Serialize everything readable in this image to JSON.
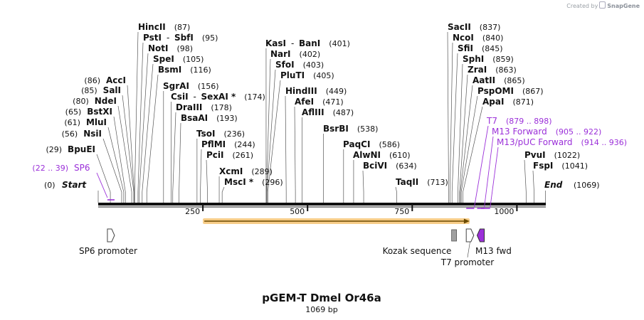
{
  "credit": {
    "prefix": "Created by",
    "brand": "SnapGene"
  },
  "map": {
    "name": "pGEM-T Dmel Or46a",
    "size_label": "1069 bp",
    "length": 1069,
    "ticks": [
      {
        "pos": 250,
        "label": "250"
      },
      {
        "pos": 500,
        "label": "500"
      },
      {
        "pos": 750,
        "label": "750"
      },
      {
        "pos": 1000,
        "label": "1000"
      }
    ],
    "start_label": {
      "pos": 0,
      "name": "Start",
      "num": "(0)"
    },
    "end_label": {
      "pos": 1069,
      "name": "End",
      "num": "(1069)"
    }
  },
  "sites": [
    {
      "name": "HincII",
      "num": "(87)",
      "pos": 87
    },
    {
      "name": "PstI",
      "extra": "SbfI",
      "num": "(95)",
      "pos": 95
    },
    {
      "name": "NotI",
      "num": "(98)",
      "pos": 98
    },
    {
      "name": "SpeI",
      "num": "(105)",
      "pos": 105
    },
    {
      "name": "BsmI",
      "num": "(116)",
      "pos": 116
    },
    {
      "name": "SgrAI",
      "num": "(156)",
      "pos": 156
    },
    {
      "name": "CsiI",
      "extra": "SexAI *",
      "num": "(174)",
      "pos": 174
    },
    {
      "name": "DraIII",
      "num": "(178)",
      "pos": 178
    },
    {
      "name": "BsaAI",
      "num": "(193)",
      "pos": 193
    },
    {
      "name": "TsoI",
      "num": "(236)",
      "pos": 236
    },
    {
      "name": "PflMI",
      "num": "(244)",
      "pos": 244
    },
    {
      "name": "PciI",
      "num": "(261)",
      "pos": 261
    },
    {
      "name": "XcmI",
      "num": "(289)",
      "pos": 289
    },
    {
      "name": "MscI *",
      "num": "(296)",
      "pos": 296
    },
    {
      "name": "AccI",
      "num": "(86)",
      "pos": 86
    },
    {
      "name": "SalI",
      "num": "(85)",
      "pos": 85
    },
    {
      "name": "NdeI",
      "num": "(80)",
      "pos": 80
    },
    {
      "name": "BstXI",
      "num": "(65)",
      "pos": 65
    },
    {
      "name": "MluI",
      "num": "(61)",
      "pos": 61
    },
    {
      "name": "NsiI",
      "num": "(56)",
      "pos": 56
    },
    {
      "name": "BpuEI",
      "num": "(29)",
      "pos": 29
    },
    {
      "name": "KasI",
      "extra": "BanI",
      "num": "(401)",
      "pos": 401
    },
    {
      "name": "NarI",
      "num": "(402)",
      "pos": 402
    },
    {
      "name": "SfoI",
      "num": "(403)",
      "pos": 403
    },
    {
      "name": "PluTI",
      "num": "(405)",
      "pos": 405
    },
    {
      "name": "HindIII",
      "num": "(449)",
      "pos": 449
    },
    {
      "name": "AfeI",
      "num": "(471)",
      "pos": 471
    },
    {
      "name": "AflIII",
      "num": "(487)",
      "pos": 487
    },
    {
      "name": "BsrBI",
      "num": "(538)",
      "pos": 538
    },
    {
      "name": "PaqCI",
      "num": "(586)",
      "pos": 586
    },
    {
      "name": "AlwNI",
      "num": "(610)",
      "pos": 610
    },
    {
      "name": "BciVI",
      "num": "(634)",
      "pos": 634
    },
    {
      "name": "TaqII",
      "num": "(713)",
      "pos": 713
    },
    {
      "name": "SacII",
      "num": "(837)",
      "pos": 837
    },
    {
      "name": "NcoI",
      "num": "(840)",
      "pos": 840
    },
    {
      "name": "SfiI",
      "num": "(845)",
      "pos": 845
    },
    {
      "name": "SphI",
      "num": "(859)",
      "pos": 859
    },
    {
      "name": "ZraI",
      "num": "(863)",
      "pos": 863
    },
    {
      "name": "AatII",
      "num": "(865)",
      "pos": 865
    },
    {
      "name": "PspOMI",
      "num": "(867)",
      "pos": 867
    },
    {
      "name": "ApaI",
      "num": "(871)",
      "pos": 871
    },
    {
      "name": "PvuI",
      "num": "(1022)",
      "pos": 1022
    },
    {
      "name": "FspI",
      "num": "(1041)",
      "pos": 1041
    }
  ],
  "primers": [
    {
      "name": "SP6",
      "range": "(22 .. 39)",
      "start": 22,
      "end": 39
    },
    {
      "name": "T7",
      "range": "(879 .. 898)",
      "start": 879,
      "end": 898
    },
    {
      "name": "M13 Forward",
      "range": "(905 .. 922)",
      "start": 905,
      "end": 922
    },
    {
      "name": "M13/pUC Forward",
      "range": "(914 .. 936)",
      "start": 914,
      "end": 936
    }
  ],
  "orf": {
    "start": 250,
    "end": 887
  },
  "features": [
    {
      "name": "SP6 promoter",
      "type": "promoter",
      "start": 22,
      "end": 39
    },
    {
      "name": "Kozak sequence",
      "type": "misc",
      "start": 844,
      "end": 853
    },
    {
      "name": "T7 promoter",
      "type": "promoter",
      "start": 879,
      "end": 897
    },
    {
      "name": "M13 fwd",
      "type": "primer_bind",
      "start": 905,
      "end": 922
    }
  ],
  "colors": {
    "primer": "#9b30d9",
    "orf_fill": "#f5c16a",
    "orf_arrow": "#6b4a00",
    "backbone": "#111111",
    "misc_fill": "#a0a0a0",
    "m13_fill": "#9b30d9",
    "text": "#111111"
  }
}
